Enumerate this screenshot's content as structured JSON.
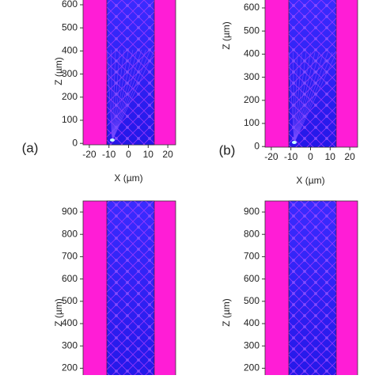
{
  "panels": [
    {
      "label": "(a)",
      "y_axis_label": "Z (µm)",
      "x_axis_label": "X (µm)",
      "yticks": [
        600,
        500,
        400,
        300,
        200,
        100,
        0
      ],
      "xticks": [
        -20,
        -10,
        0,
        10,
        20
      ]
    },
    {
      "label": "(b)",
      "y_axis_label": "Z (µm)",
      "x_axis_label": "X (µm)",
      "yticks": [
        600,
        500,
        400,
        300,
        200,
        100,
        0
      ],
      "xticks": [
        -20,
        -10,
        0,
        10,
        20
      ]
    },
    {
      "y_axis_label": "Z (µm)",
      "yticks": [
        900,
        800,
        700,
        600,
        500,
        400,
        300,
        200
      ]
    },
    {
      "y_axis_label": "Z (µm)",
      "yticks": [
        900,
        800,
        700,
        600,
        500,
        400,
        300,
        200
      ]
    }
  ]
}
